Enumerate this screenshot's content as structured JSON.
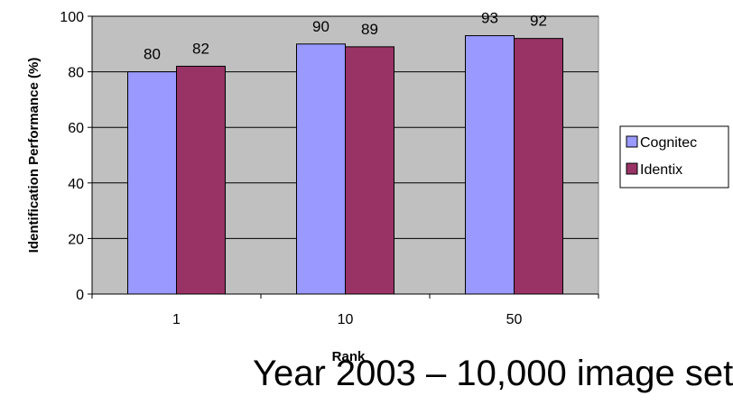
{
  "chart_data": {
    "type": "bar",
    "categories": [
      "1",
      "10",
      "50"
    ],
    "series": [
      {
        "name": "Cognitec",
        "values": [
          80,
          90,
          93
        ],
        "color": "#9999ff"
      },
      {
        "name": "Identix",
        "values": [
          82,
          89,
          92
        ],
        "color": "#993366"
      }
    ],
    "data_labels": [
      [
        "80",
        "90",
        "93"
      ],
      [
        "82",
        "89",
        "92"
      ]
    ],
    "xlabel": "Rank",
    "ylabel": "Identification Performance (%)",
    "ylim": [
      0,
      100
    ],
    "yticks": [
      "0",
      "20",
      "40",
      "60",
      "80",
      "100"
    ],
    "grid": true,
    "plot_background": "#c0c0c0",
    "legend_position": "right"
  },
  "caption": "Year 2003 – 10,000 image set"
}
